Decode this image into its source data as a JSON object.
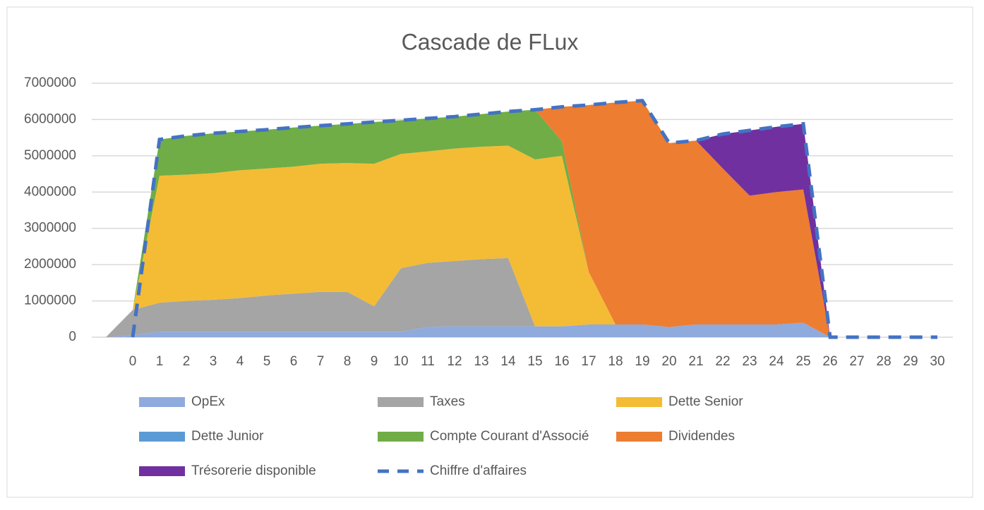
{
  "chart_data": {
    "type": "stacked-area",
    "title": "Cascade de FLux",
    "categories": [
      null,
      "0",
      "1",
      "2",
      "3",
      "4",
      "5",
      "6",
      "7",
      "8",
      "9",
      "10",
      "11",
      "12",
      "13",
      "14",
      "15",
      "16",
      "17",
      "18",
      "19",
      "20",
      "21",
      "22",
      "23",
      "24",
      "25",
      "26",
      "27",
      "28",
      "29",
      "30"
    ],
    "ylim": [
      0,
      7000000
    ],
    "yticks": [
      0,
      1000000,
      2000000,
      3000000,
      4000000,
      5000000,
      6000000,
      7000000
    ],
    "grid": true,
    "legend": "bottom",
    "series": [
      {
        "name": "OpEx",
        "color": "#8faadc",
        "values": [
          0,
          50000,
          150000,
          150000,
          150000,
          150000,
          150000,
          150000,
          150000,
          150000,
          150000,
          150000,
          280000,
          300000,
          300000,
          300000,
          300000,
          300000,
          350000,
          350000,
          350000,
          280000,
          350000,
          350000,
          350000,
          350000,
          400000,
          0,
          0,
          0,
          0,
          0
        ]
      },
      {
        "name": "Taxes",
        "color": "#a5a5a5",
        "values": [
          0,
          700000,
          800000,
          850000,
          880000,
          930000,
          1000000,
          1050000,
          1100000,
          1100000,
          700000,
          1750000,
          1770000,
          1800000,
          1850000,
          1880000,
          0,
          0,
          0,
          0,
          0,
          0,
          0,
          0,
          0,
          0,
          0,
          0,
          0,
          0,
          0,
          0
        ]
      },
      {
        "name": "Dette Senior",
        "color": "#f4bc34",
        "values": [
          0,
          0,
          3500000,
          3480000,
          3490000,
          3520000,
          3500000,
          3500000,
          3530000,
          3550000,
          3930000,
          3150000,
          3070000,
          3100000,
          3100000,
          3100000,
          4600000,
          4700000,
          1450000,
          0,
          0,
          0,
          0,
          0,
          0,
          0,
          0,
          0,
          0,
          0,
          0,
          0
        ]
      },
      {
        "name": "Dette Junior",
        "color": "#5b9bd5",
        "values": [
          0,
          0,
          0,
          0,
          0,
          0,
          0,
          0,
          0,
          0,
          0,
          0,
          0,
          0,
          0,
          0,
          0,
          0,
          0,
          0,
          0,
          0,
          0,
          0,
          0,
          0,
          0,
          0,
          0,
          0,
          0,
          0
        ]
      },
      {
        "name": "Compte Courant d'Associé",
        "color": "#70ad47",
        "values": [
          0,
          0,
          1000000,
          1070000,
          1100000,
          1070000,
          1070000,
          1080000,
          1050000,
          1080000,
          1150000,
          930000,
          910000,
          880000,
          900000,
          940000,
          1370000,
          400000,
          0,
          0,
          0,
          0,
          0,
          0,
          0,
          0,
          0,
          0,
          0,
          0,
          0,
          0
        ]
      },
      {
        "name": "Dividendes",
        "color": "#ed7d31",
        "values": [
          0,
          0,
          0,
          0,
          0,
          0,
          0,
          0,
          0,
          0,
          0,
          0,
          0,
          0,
          0,
          0,
          0,
          950000,
          4600000,
          6120000,
          6170000,
          5070000,
          5070000,
          4300000,
          3550000,
          3650000,
          3670000,
          0,
          0,
          0,
          0,
          0
        ]
      },
      {
        "name": "Trésorerie disponible",
        "color": "#7030a0",
        "values": [
          0,
          0,
          0,
          0,
          0,
          0,
          0,
          0,
          0,
          0,
          0,
          0,
          0,
          0,
          0,
          0,
          0,
          0,
          0,
          0,
          0,
          0,
          0,
          950000,
          1800000,
          1800000,
          1810000,
          0,
          0,
          0,
          0,
          0
        ]
      },
      {
        "name": "Chiffre d'affaires",
        "color": "#4472c4",
        "type": "line",
        "dashed": true,
        "values": [
          null,
          0,
          5450000,
          5550000,
          5620000,
          5670000,
          5720000,
          5780000,
          5830000,
          5880000,
          5930000,
          5980000,
          6030000,
          6080000,
          6150000,
          6220000,
          6270000,
          6350000,
          6400000,
          6470000,
          6520000,
          5350000,
          5420000,
          5600000,
          5700000,
          5800000,
          5880000,
          0,
          0,
          0,
          0,
          0
        ]
      }
    ]
  }
}
